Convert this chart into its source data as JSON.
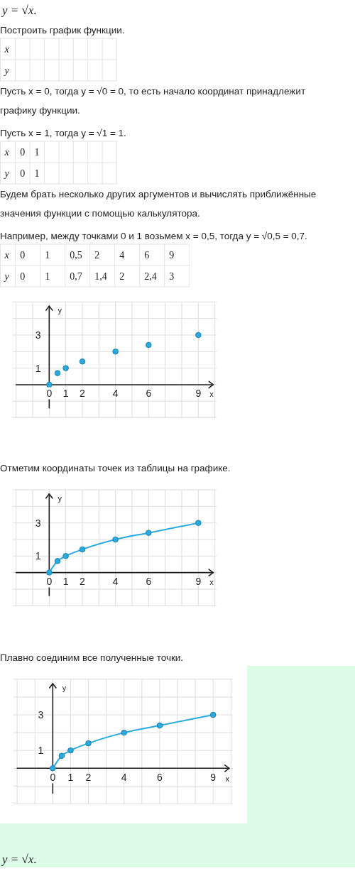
{
  "chart_data": [
    {
      "type": "other",
      "title": "y = √x.",
      "annotations": [
        "Построить график функции.",
        "x\t\t\t\t\t\t\t\ny\t\t\t\t\t\t\t",
        "Пусть x = 0, тогда y = √0 = 0, то есть начало координат принадлежит графику функции.",
        "Пусть x = 1, тогда y = √1 = 1.",
        "x\t0\t1\t\t\t\t\t\ny\t0\t1\t\t\t\t\t",
        "Будем брать несколько других аргументов и вычислять приближённые значения функции с помощью калькулятора.",
        "Например, между точками 0 и 1 возьмем x = 0,5, тогда y = √0,5 = 0,7.",
        "x\t0\t1\t0,5\t2\t4\t6\t9\ny\t0\t1\t0,7\t1,4\t2\t2,4\t3"
      ]
    },
    {
      "type": "scatter",
      "x": [
        0,
        0.5,
        1,
        2,
        4,
        6,
        9
      ],
      "values": [
        0,
        0.7,
        1,
        1.4,
        2,
        2.4,
        3
      ],
      "color": "#29abe2",
      "marker": "circle",
      "xlabel": "x",
      "ylabel": "y",
      "xlim": [
        -2.2,
        10.1
      ],
      "ylim": [
        -2,
        5
      ],
      "xticks": [
        {
          "value": -2,
          "label": null
        },
        {
          "value": -1,
          "label": null
        },
        {
          "value": 0,
          "label": "0"
        },
        {
          "value": 1,
          "label": "1"
        },
        {
          "value": 2,
          "label": "2"
        },
        {
          "value": 3,
          "label": null
        },
        {
          "value": 4,
          "label": "4"
        },
        {
          "value": 5,
          "label": null
        },
        {
          "value": 6,
          "label": "6"
        },
        {
          "value": 7,
          "label": null
        },
        {
          "value": 8,
          "label": null
        },
        {
          "value": 9,
          "label": "9"
        },
        {
          "value": 10,
          "label": null
        }
      ],
      "yticks": [
        {
          "value": -2,
          "label": null
        },
        {
          "value": -1,
          "label": null
        },
        {
          "value": 0,
          "label": null
        },
        {
          "value": 1,
          "label": "1"
        },
        {
          "value": 2,
          "label": null
        },
        {
          "value": 3,
          "label": "3"
        },
        {
          "value": 4,
          "label": null
        },
        {
          "value": 5,
          "label": null
        }
      ],
      "grid": true
    },
    {
      "type": "line",
      "title": "Отметим координаты точек из таблицы на графике.",
      "x": [
        0,
        0.5,
        1,
        2,
        4,
        6,
        9
      ],
      "values": [
        0,
        0.7,
        1,
        1.4,
        2,
        2.4,
        3
      ],
      "color": "#29abe2",
      "marker": "circle",
      "xlabel": "x",
      "ylabel": "y",
      "xlim": [
        -2.2,
        10.1
      ],
      "ylim": [
        -2,
        5
      ],
      "xticks": [
        {
          "value": -2,
          "label": null
        },
        {
          "value": -1,
          "label": null
        },
        {
          "value": 0,
          "label": "0"
        },
        {
          "value": 1,
          "label": "1"
        },
        {
          "value": 2,
          "label": "2"
        },
        {
          "value": 3,
          "label": null
        },
        {
          "value": 4,
          "label": "4"
        },
        {
          "value": 5,
          "label": null
        },
        {
          "value": 6,
          "label": "6"
        },
        {
          "value": 7,
          "label": null
        },
        {
          "value": 8,
          "label": null
        },
        {
          "value": 9,
          "label": "9"
        },
        {
          "value": 10,
          "label": null
        }
      ],
      "yticks": [
        {
          "value": -2,
          "label": null
        },
        {
          "value": -1,
          "label": null
        },
        {
          "value": 0,
          "label": null
        },
        {
          "value": 1,
          "label": "1"
        },
        {
          "value": 2,
          "label": null
        },
        {
          "value": 3,
          "label": "3"
        },
        {
          "value": 4,
          "label": null
        },
        {
          "value": 5,
          "label": null
        }
      ],
      "grid": true
    },
    {
      "type": "line",
      "title": "Плавно соединим все полученные точки.",
      "x": [
        0,
        0.5,
        1,
        2,
        4,
        6,
        9
      ],
      "values": [
        0,
        0.7,
        1,
        1.4,
        2,
        2.4,
        3
      ],
      "color": "#29abe2",
      "marker": "circle",
      "xlabel": "x",
      "ylabel": "y",
      "xlim": [
        -2.2,
        10.1
      ],
      "ylim": [
        -2,
        5
      ],
      "xticks": [
        {
          "value": -2,
          "label": null
        },
        {
          "value": -1,
          "label": null
        },
        {
          "value": 0,
          "label": "0"
        },
        {
          "value": 1,
          "label": "1"
        },
        {
          "value": 2,
          "label": "2"
        },
        {
          "value": 3,
          "label": null
        },
        {
          "value": 4,
          "label": "4"
        },
        {
          "value": 5,
          "label": null
        },
        {
          "value": 6,
          "label": "6"
        },
        {
          "value": 7,
          "label": null
        },
        {
          "value": 8,
          "label": null
        },
        {
          "value": 9,
          "label": "9"
        },
        {
          "value": 10,
          "label": null
        }
      ],
      "yticks": [
        {
          "value": -2,
          "label": null
        },
        {
          "value": -1,
          "label": null
        },
        {
          "value": 0,
          "label": null
        },
        {
          "value": 1,
          "label": "1"
        },
        {
          "value": 2,
          "label": null
        },
        {
          "value": 3,
          "label": "3"
        },
        {
          "value": 4,
          "label": null
        },
        {
          "value": 5,
          "label": null
        }
      ],
      "grid": true,
      "annotations": [
        "y = √x."
      ]
    }
  ]
}
